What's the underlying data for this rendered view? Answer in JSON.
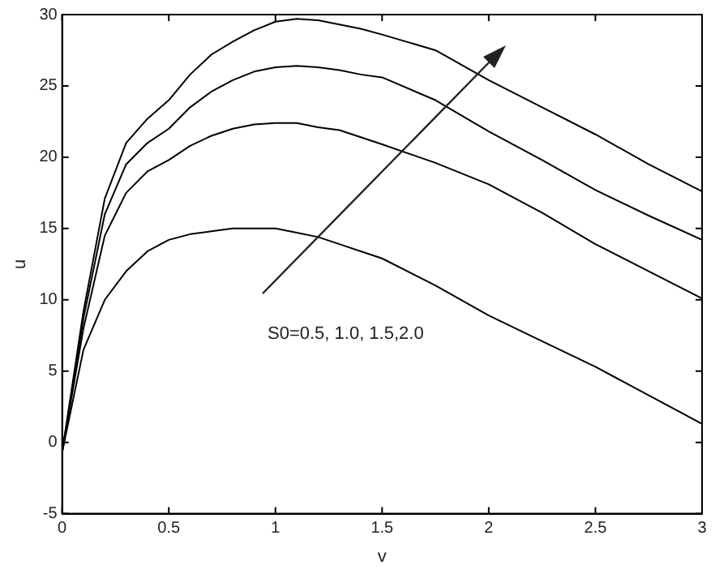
{
  "chart_data": {
    "type": "line",
    "xlabel": "v",
    "ylabel": "u",
    "x": [
      0,
      0.1,
      0.2,
      0.3,
      0.4,
      0.5,
      0.6,
      0.7,
      0.8,
      0.9,
      1.0,
      1.1,
      1.2,
      1.3,
      1.4,
      1.5,
      1.75,
      2.0,
      2.25,
      2.5,
      2.75,
      3.0
    ],
    "series": [
      {
        "color": "#000000",
        "values": [
          -0.7,
          6.5,
          10,
          12,
          13.4,
          14.2,
          14.6,
          14.8,
          15,
          15,
          15,
          14.7,
          14.4,
          13.9,
          13.4,
          12.9,
          11,
          8.9,
          7.1,
          5.3,
          3.3,
          1.3
        ]
      },
      {
        "color": "#000000",
        "values": [
          -0.7,
          8,
          14.5,
          17.5,
          19,
          19.8,
          20.8,
          21.5,
          22,
          22.3,
          22.4,
          22.4,
          22.1,
          21.9,
          21.4,
          20.9,
          19.6,
          18.1,
          16.1,
          13.9,
          12,
          10.1
        ]
      },
      {
        "color": "#000000",
        "values": [
          -0.7,
          8.7,
          16,
          19.5,
          21,
          22,
          23.5,
          24.6,
          25.4,
          26,
          26.3,
          26.4,
          26.3,
          26.1,
          25.8,
          25.6,
          24,
          21.8,
          19.8,
          17.7,
          15.9,
          14.2
        ]
      },
      {
        "color": "#000000",
        "values": [
          -0.7,
          9.2,
          17.1,
          21,
          22.7,
          24,
          25.8,
          27.2,
          28.1,
          28.9,
          29.5,
          29.7,
          29.6,
          29.3,
          29,
          28.6,
          27.5,
          25.4,
          23.5,
          21.6,
          19.5,
          17.6
        ]
      }
    ],
    "xlim": [
      0,
      3
    ],
    "xticks": [
      0,
      0.5,
      1,
      1.5,
      2,
      2.5,
      3
    ],
    "ylim": [
      -5,
      30
    ],
    "yticks": [
      -5,
      0,
      5,
      10,
      15,
      20,
      25,
      30
    ],
    "grid": false,
    "legend": false,
    "marker": "none",
    "line_style": "solid",
    "annotations": [
      "S0=0.5, 1.0, 1.5,2.0"
    ]
  }
}
